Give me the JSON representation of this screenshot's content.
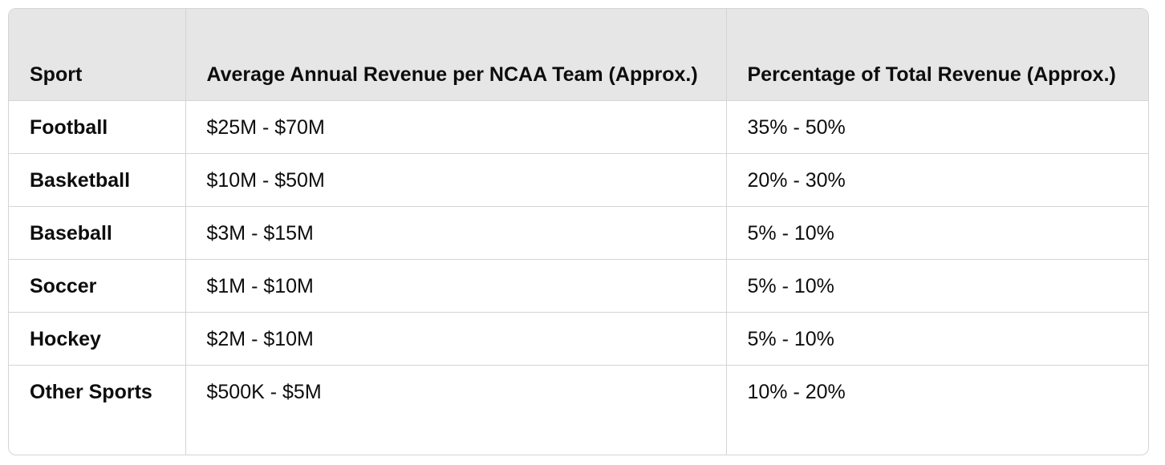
{
  "table": {
    "headers": [
      "Sport",
      "Average Annual Revenue per NCAA Team (Approx.)",
      "Percentage of Total Revenue (Approx.)"
    ],
    "rows": [
      {
        "sport": "Football",
        "revenue": "$25M - $70M",
        "percentage": "35% - 50%"
      },
      {
        "sport": "Basketball",
        "revenue": "$10M - $50M",
        "percentage": "20% - 30%"
      },
      {
        "sport": "Baseball",
        "revenue": "$3M - $15M",
        "percentage": "5% - 10%"
      },
      {
        "sport": "Soccer",
        "revenue": "$1M - $10M",
        "percentage": "5% - 10%"
      },
      {
        "sport": "Hockey",
        "revenue": "$2M - $10M",
        "percentage": "5% - 10%"
      },
      {
        "sport": "Other Sports",
        "revenue": "$500K - $5M",
        "percentage": "10% - 20%"
      }
    ]
  }
}
